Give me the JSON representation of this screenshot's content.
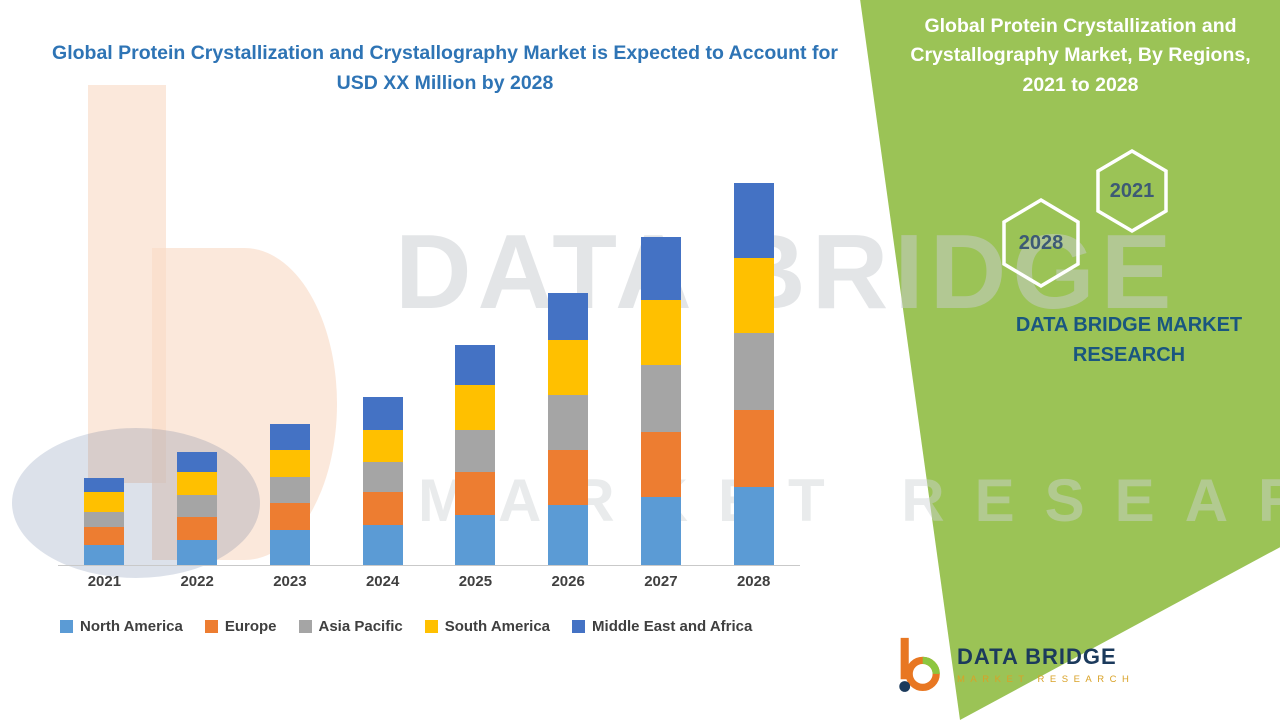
{
  "left_section": {
    "title": "Global Protein Crystallization and Crystallography Market is Expected to Account for USD XX Million by 2028"
  },
  "chart_data": {
    "type": "bar",
    "stacked": true,
    "categories": [
      "2021",
      "2022",
      "2023",
      "2024",
      "2025",
      "2026",
      "2027",
      "2028"
    ],
    "series": [
      {
        "name": "North America",
        "color": "#5B9BD5",
        "values": [
          20,
          25,
          35,
          40,
          50,
          60,
          68,
          78
        ]
      },
      {
        "name": "Europe",
        "color": "#ED7D31",
        "values": [
          18,
          23,
          27,
          33,
          43,
          55,
          65,
          77
        ]
      },
      {
        "name": "Asia Pacific",
        "color": "#A5A5A5",
        "values": [
          15,
          22,
          26,
          30,
          42,
          55,
          67,
          77
        ]
      },
      {
        "name": "South America",
        "color": "#FFC000",
        "values": [
          20,
          23,
          27,
          32,
          45,
          55,
          65,
          75
        ]
      },
      {
        "name": "Middle East and Africa",
        "color": "#4472C4",
        "values": [
          14,
          20,
          26,
          33,
          40,
          47,
          63,
          75
        ]
      }
    ],
    "title": "",
    "xlabel": "",
    "ylabel": "",
    "ylim": [
      0,
      400
    ],
    "y_axis_labels_visible": false,
    "grid": false,
    "legend_position": "bottom"
  },
  "right_panel": {
    "title": "Global Protein Crystallization and Crystallography Market, By Regions, 2021 to 2028",
    "hex_2021": "2021",
    "hex_2028": "2028",
    "brand_caption": "DATA BRIDGE MARKET RESEARCH"
  },
  "watermark": {
    "line1": "DATA BRIDGE",
    "line2": "MARKET RESEARCH"
  },
  "footer_logo": {
    "brand": "DATA BRIDGE",
    "tagline": "MARKET RESEARCH"
  },
  "colors": {
    "panel_green": "#9BC356",
    "left_title_blue": "#2E74B5",
    "axis_label_gray": "#404040",
    "brand_caption_blue": "#1A567F",
    "hex_year_text": "#3D5A75",
    "logo_navy": "#1B3A5C",
    "logo_gold": "#D9A227"
  }
}
